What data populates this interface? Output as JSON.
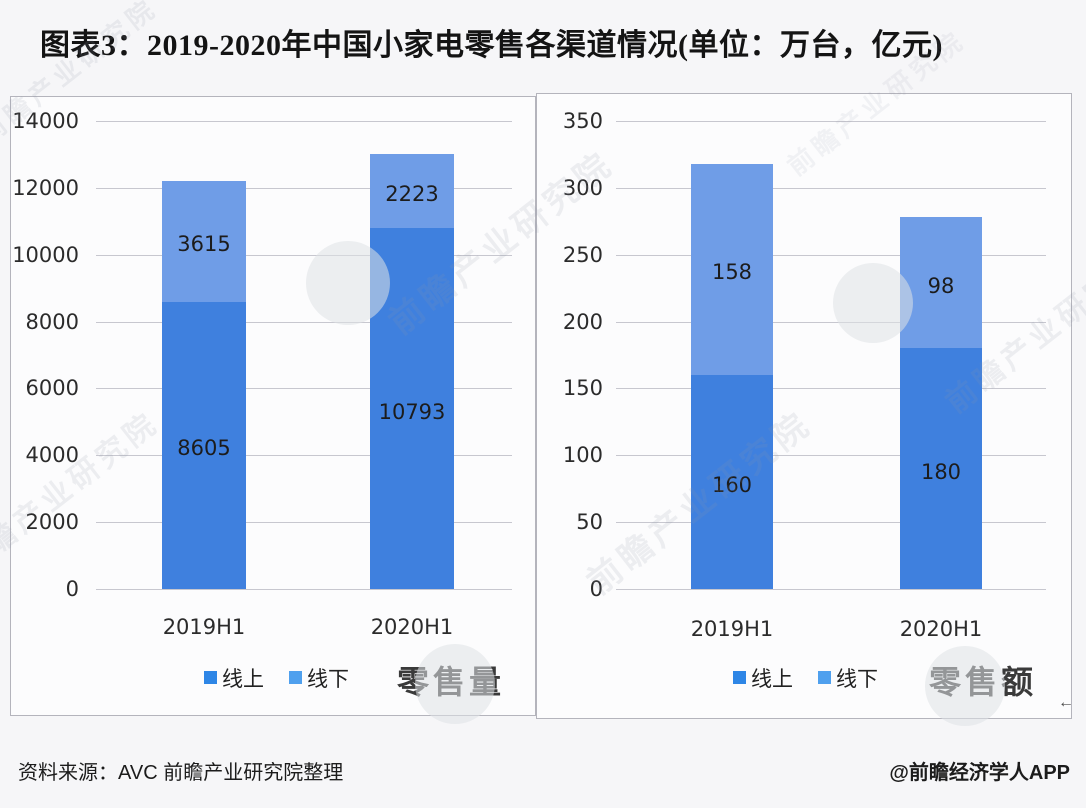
{
  "title": "图表3：2019-2020年中国小家电零售各渠道情况(单位：万台，亿元)",
  "colors": {
    "bar_online": "#3f80de",
    "bar_offline": "#6f9de7",
    "legend_online": "#2e86e6",
    "legend_offline": "#4fa0ee",
    "gridline": "#c7c7cf",
    "panel_border": "#b4b4bc"
  },
  "chart_data": [
    {
      "type": "bar",
      "stacked": true,
      "title": "零售量",
      "categories": [
        "2019H1",
        "2020H1"
      ],
      "series": [
        {
          "name": "线上",
          "values": [
            8605,
            10793
          ]
        },
        {
          "name": "线下",
          "values": [
            3615,
            2223
          ]
        }
      ],
      "ylim": [
        0,
        14000
      ],
      "yticks": [
        "14000",
        "12000",
        "10000",
        "8000",
        "6000",
        "4000",
        "2000",
        "0"
      ],
      "grid": true,
      "legend_position": "bottom"
    },
    {
      "type": "bar",
      "stacked": true,
      "title": "零售额",
      "categories": [
        "2019H1",
        "2020H1"
      ],
      "series": [
        {
          "name": "线上",
          "values": [
            160,
            180
          ]
        },
        {
          "name": "线下",
          "values": [
            158,
            98
          ]
        }
      ],
      "ylim": [
        0,
        350
      ],
      "yticks": [
        "350",
        "300",
        "250",
        "200",
        "150",
        "100",
        "50",
        "0"
      ],
      "grid": true,
      "legend_position": "bottom"
    }
  ],
  "footer": {
    "source": "资料来源：AVC 前瞻产业研究院整理",
    "credit": "@前瞻经济学人APP"
  },
  "watermark": {
    "text": "前瞻产业研究院"
  },
  "artifacts": {
    "arrow": "←"
  }
}
